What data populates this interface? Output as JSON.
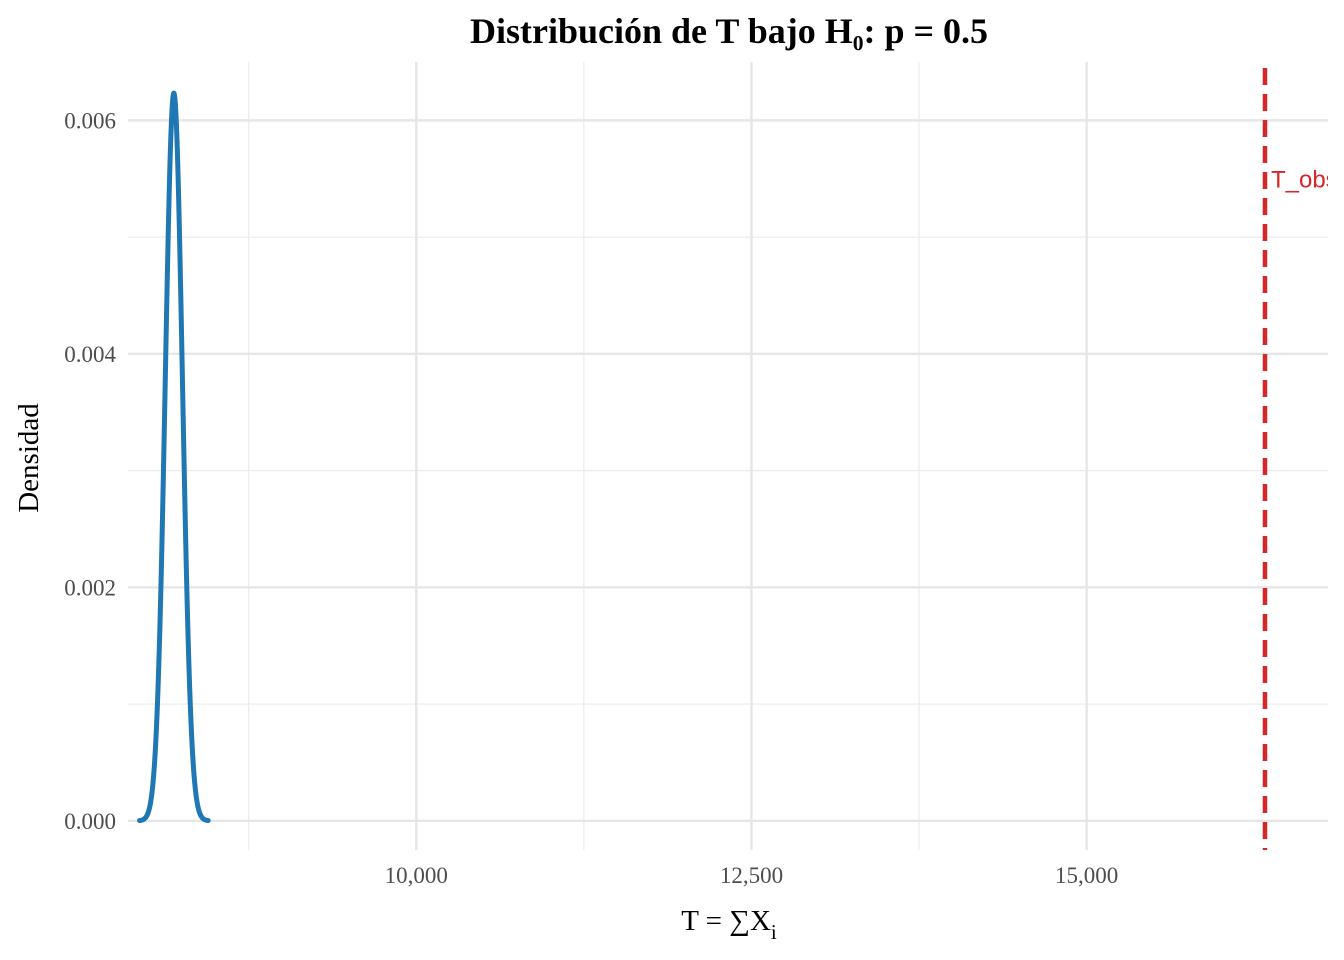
{
  "chart_data": {
    "type": "line",
    "title": "Distribución de T bajo H₀: p = 0.5",
    "xlabel": {
      "main": "T = ∑X",
      "sub": "i"
    },
    "ylabel": "Densidad",
    "xlim": [
      7850,
      16800
    ],
    "ylim": [
      -0.00025,
      0.0065
    ],
    "x_ticks": [
      10000,
      12500,
      15000
    ],
    "x_tick_labels": [
      "10,000",
      "12,500",
      "15,000"
    ],
    "x_minor_ticks": [
      8750,
      11250,
      13750
    ],
    "y_ticks": [
      0.0,
      0.002,
      0.004,
      0.006
    ],
    "y_tick_labels": [
      "0.000",
      "0.002",
      "0.004",
      "0.006"
    ],
    "y_minor_ticks": [
      0.001,
      0.003,
      0.005
    ],
    "grid": true,
    "series": [
      {
        "type": "density",
        "distribution": "normal",
        "mean": 8192,
        "sd": 64,
        "x_range": [
          7936,
          8448
        ],
        "color": "#1f77b4"
      }
    ],
    "annotations": [
      {
        "type": "vline",
        "x": 16330,
        "style": "dashed",
        "color": "#d62728",
        "label": "T_obs",
        "label_y": 0.0055
      }
    ]
  }
}
